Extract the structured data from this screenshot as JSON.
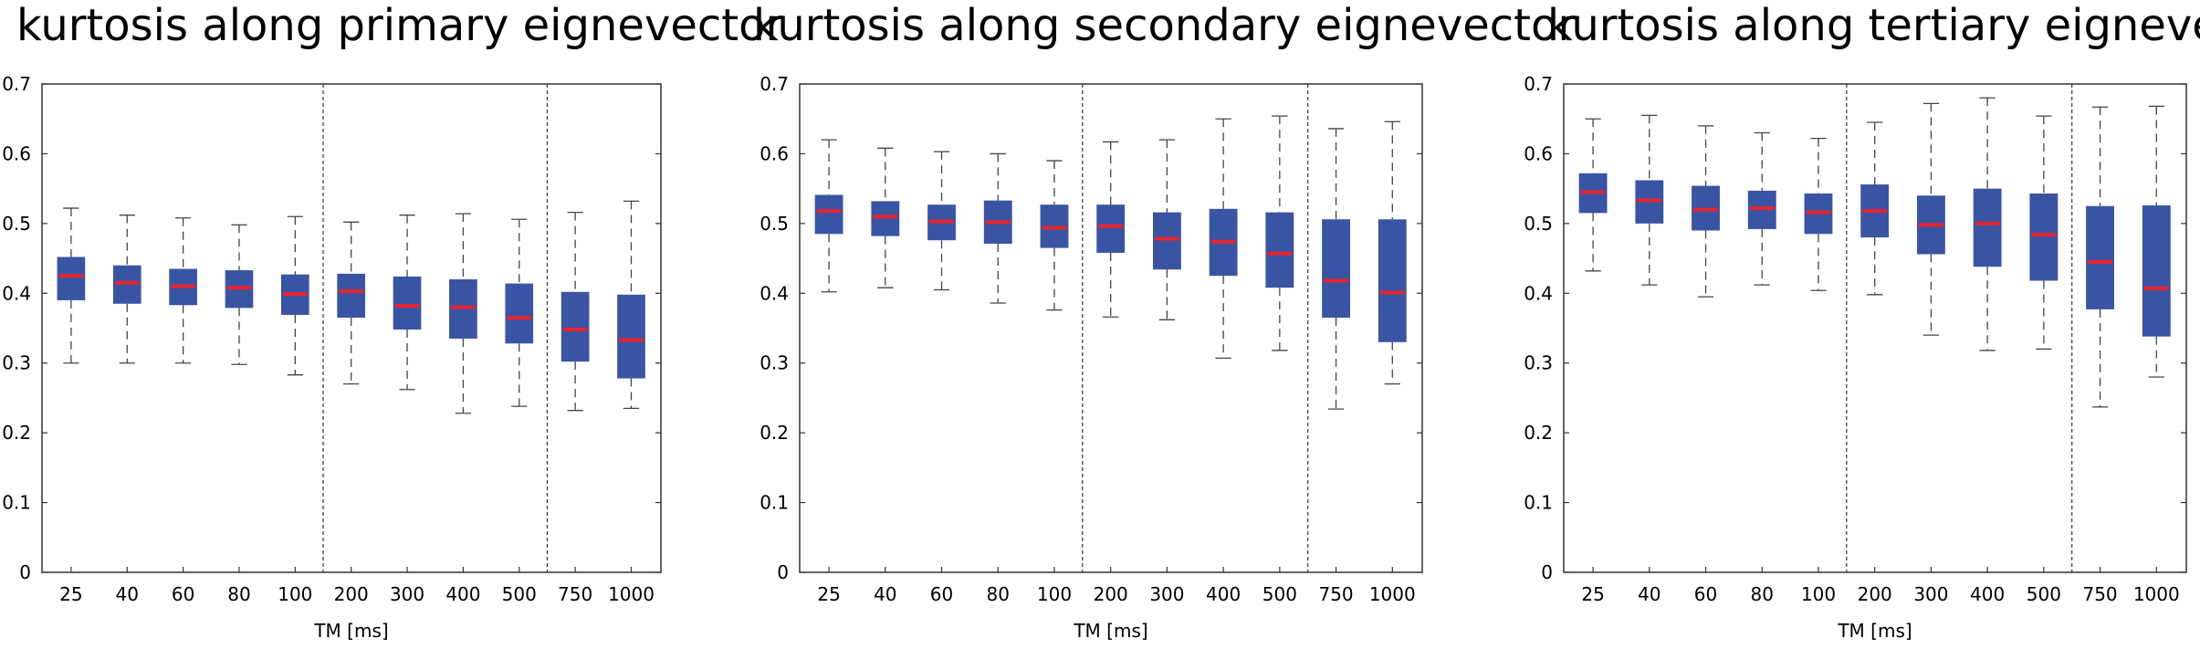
{
  "chart_data": [
    {
      "type": "boxplot",
      "title": "kurtosis along primary eignevector",
      "xlabel": "TM [ms]",
      "ylabel": "",
      "ylim": [
        0,
        0.7
      ],
      "yticks": [
        "0",
        "0.1",
        "0.2",
        "0.3",
        "0.4",
        "0.5",
        "0.6",
        "0.7"
      ],
      "categories": [
        "25",
        "40",
        "60",
        "80",
        "100",
        "200",
        "300",
        "400",
        "500",
        "750",
        "1000"
      ],
      "separators_after": [
        "100",
        "500"
      ],
      "boxes": [
        {
          "min": 0.3,
          "q1": 0.39,
          "median": 0.425,
          "q3": 0.452,
          "max": 0.522
        },
        {
          "min": 0.3,
          "q1": 0.385,
          "median": 0.415,
          "q3": 0.44,
          "max": 0.512
        },
        {
          "min": 0.3,
          "q1": 0.383,
          "median": 0.41,
          "q3": 0.435,
          "max": 0.508
        },
        {
          "min": 0.298,
          "q1": 0.379,
          "median": 0.408,
          "q3": 0.433,
          "max": 0.498
        },
        {
          "min": 0.283,
          "q1": 0.369,
          "median": 0.399,
          "q3": 0.427,
          "max": 0.51
        },
        {
          "min": 0.27,
          "q1": 0.365,
          "median": 0.403,
          "q3": 0.428,
          "max": 0.502
        },
        {
          "min": 0.262,
          "q1": 0.348,
          "median": 0.382,
          "q3": 0.424,
          "max": 0.512
        },
        {
          "min": 0.228,
          "q1": 0.335,
          "median": 0.38,
          "q3": 0.42,
          "max": 0.514
        },
        {
          "min": 0.238,
          "q1": 0.328,
          "median": 0.365,
          "q3": 0.414,
          "max": 0.506
        },
        {
          "min": 0.232,
          "q1": 0.302,
          "median": 0.348,
          "q3": 0.402,
          "max": 0.516
        },
        {
          "min": 0.235,
          "q1": 0.278,
          "median": 0.333,
          "q3": 0.398,
          "max": 0.532
        }
      ]
    },
    {
      "type": "boxplot",
      "title": "kurtosis along secondary eignevector",
      "xlabel": "TM [ms]",
      "ylabel": "",
      "ylim": [
        0,
        0.7
      ],
      "yticks": [
        "0",
        "0.1",
        "0.2",
        "0.3",
        "0.4",
        "0.5",
        "0.6",
        "0.7"
      ],
      "categories": [
        "25",
        "40",
        "60",
        "80",
        "100",
        "200",
        "300",
        "400",
        "500",
        "750",
        "1000"
      ],
      "separators_after": [
        "100",
        "500"
      ],
      "boxes": [
        {
          "min": 0.402,
          "q1": 0.485,
          "median": 0.518,
          "q3": 0.541,
          "max": 0.62
        },
        {
          "min": 0.408,
          "q1": 0.482,
          "median": 0.51,
          "q3": 0.532,
          "max": 0.608
        },
        {
          "min": 0.405,
          "q1": 0.476,
          "median": 0.503,
          "q3": 0.527,
          "max": 0.603
        },
        {
          "min": 0.386,
          "q1": 0.471,
          "median": 0.502,
          "q3": 0.533,
          "max": 0.6
        },
        {
          "min": 0.376,
          "q1": 0.465,
          "median": 0.494,
          "q3": 0.527,
          "max": 0.59
        },
        {
          "min": 0.366,
          "q1": 0.458,
          "median": 0.496,
          "q3": 0.527,
          "max": 0.617
        },
        {
          "min": 0.362,
          "q1": 0.434,
          "median": 0.478,
          "q3": 0.516,
          "max": 0.62
        },
        {
          "min": 0.307,
          "q1": 0.425,
          "median": 0.474,
          "q3": 0.521,
          "max": 0.65
        },
        {
          "min": 0.318,
          "q1": 0.408,
          "median": 0.457,
          "q3": 0.516,
          "max": 0.654
        },
        {
          "min": 0.234,
          "q1": 0.365,
          "median": 0.418,
          "q3": 0.506,
          "max": 0.636
        },
        {
          "min": 0.27,
          "q1": 0.33,
          "median": 0.401,
          "q3": 0.506,
          "max": 0.646
        }
      ]
    },
    {
      "type": "boxplot",
      "title": "kurtosis along tertiary eignevector",
      "xlabel": "TM [ms]",
      "ylabel": "",
      "ylim": [
        0,
        0.7
      ],
      "yticks": [
        "0",
        "0.1",
        "0.2",
        "0.3",
        "0.4",
        "0.5",
        "0.6",
        "0.7"
      ],
      "categories": [
        "25",
        "40",
        "60",
        "80",
        "100",
        "200",
        "300",
        "400",
        "500",
        "750",
        "1000"
      ],
      "separators_after": [
        "100",
        "500"
      ],
      "boxes": [
        {
          "min": 0.432,
          "q1": 0.515,
          "median": 0.545,
          "q3": 0.572,
          "max": 0.65
        },
        {
          "min": 0.412,
          "q1": 0.5,
          "median": 0.533,
          "q3": 0.562,
          "max": 0.655
        },
        {
          "min": 0.395,
          "q1": 0.49,
          "median": 0.52,
          "q3": 0.554,
          "max": 0.64
        },
        {
          "min": 0.412,
          "q1": 0.492,
          "median": 0.522,
          "q3": 0.547,
          "max": 0.63
        },
        {
          "min": 0.404,
          "q1": 0.485,
          "median": 0.516,
          "q3": 0.543,
          "max": 0.622
        },
        {
          "min": 0.398,
          "q1": 0.48,
          "median": 0.518,
          "q3": 0.556,
          "max": 0.645
        },
        {
          "min": 0.34,
          "q1": 0.456,
          "median": 0.498,
          "q3": 0.54,
          "max": 0.672
        },
        {
          "min": 0.318,
          "q1": 0.438,
          "median": 0.5,
          "q3": 0.55,
          "max": 0.68
        },
        {
          "min": 0.32,
          "q1": 0.418,
          "median": 0.484,
          "q3": 0.543,
          "max": 0.654
        },
        {
          "min": 0.237,
          "q1": 0.377,
          "median": 0.445,
          "q3": 0.525,
          "max": 0.667
        },
        {
          "min": 0.28,
          "q1": 0.338,
          "median": 0.407,
          "q3": 0.526,
          "max": 0.668
        }
      ]
    }
  ],
  "colors": {
    "box_fill": "#3a54a4",
    "median": "#e8232c",
    "whisker": "#444444",
    "axes": "#333333"
  }
}
